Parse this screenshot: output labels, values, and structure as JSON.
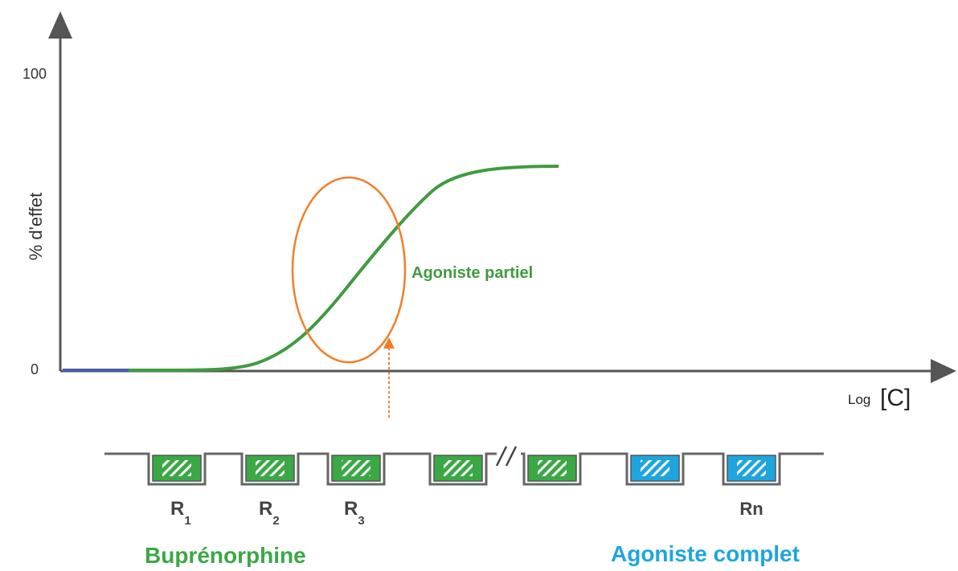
{
  "y_axis": {
    "label": "% d'effet",
    "ticks": [
      "100",
      "0"
    ]
  },
  "x_axis": {
    "label_small": "Log",
    "label_large": "[C]"
  },
  "curve_label": "Agoniste partiel",
  "receptors": [
    {
      "base": "R",
      "sub": "1"
    },
    {
      "base": "R",
      "sub": "2"
    },
    {
      "base": "R",
      "sub": "3"
    },
    {
      "base": "Rn"
    }
  ],
  "groups": {
    "left": "Buprénorphine",
    "right": "Agoniste complet"
  }
}
